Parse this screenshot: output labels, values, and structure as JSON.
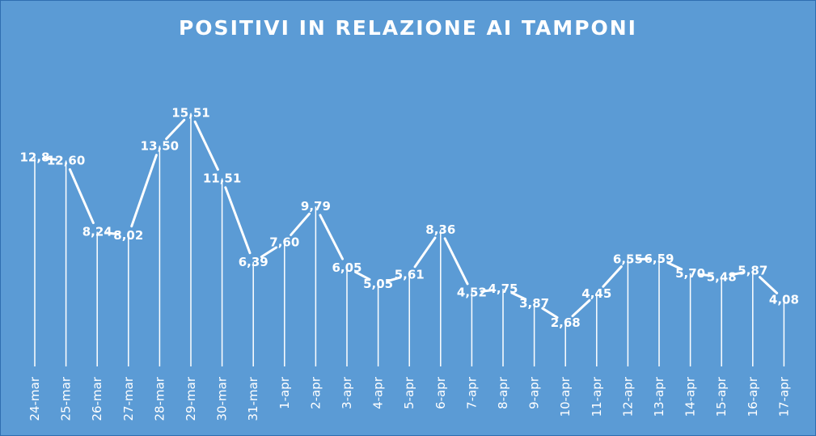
{
  "chart_data": {
    "type": "line",
    "title": "POSITIVI IN RELAZIONE AI TAMPONI",
    "xlabel": "",
    "ylabel": "",
    "categories": [
      "24-mar",
      "25-mar",
      "26-mar",
      "27-mar",
      "28-mar",
      "29-mar",
      "30-mar",
      "31-mar",
      "1-apr",
      "2-apr",
      "3-apr",
      "4-apr",
      "5-apr",
      "6-apr",
      "7-apr",
      "8-apr",
      "9-apr",
      "10-apr",
      "11-apr",
      "12-apr",
      "13-apr",
      "14-apr",
      "15-apr",
      "16-apr",
      "17-apr"
    ],
    "values": [
      12.8,
      12.6,
      8.24,
      8.02,
      13.5,
      15.51,
      11.51,
      6.39,
      7.6,
      9.79,
      6.05,
      5.05,
      5.61,
      8.36,
      4.52,
      4.75,
      3.87,
      2.68,
      4.45,
      6.55,
      6.59,
      5.7,
      5.48,
      5.87,
      4.08
    ],
    "value_labels": [
      "12,8",
      "12,60",
      "8,24",
      "8,02",
      "13,50",
      "15,51",
      "11,51",
      "6,39",
      "7,60",
      "9,79",
      "6,05",
      "5,05",
      "5,61",
      "8,36",
      "4,52",
      "4,75",
      "3,87",
      "2,68",
      "4,45",
      "6,55",
      "6,59",
      "5,70",
      "5,48",
      "5,87",
      "4,08"
    ],
    "grid": false,
    "legend": "none",
    "colors": {
      "background": "#5b9bd5",
      "line": "#ffffff",
      "text": "#ffffff"
    }
  }
}
